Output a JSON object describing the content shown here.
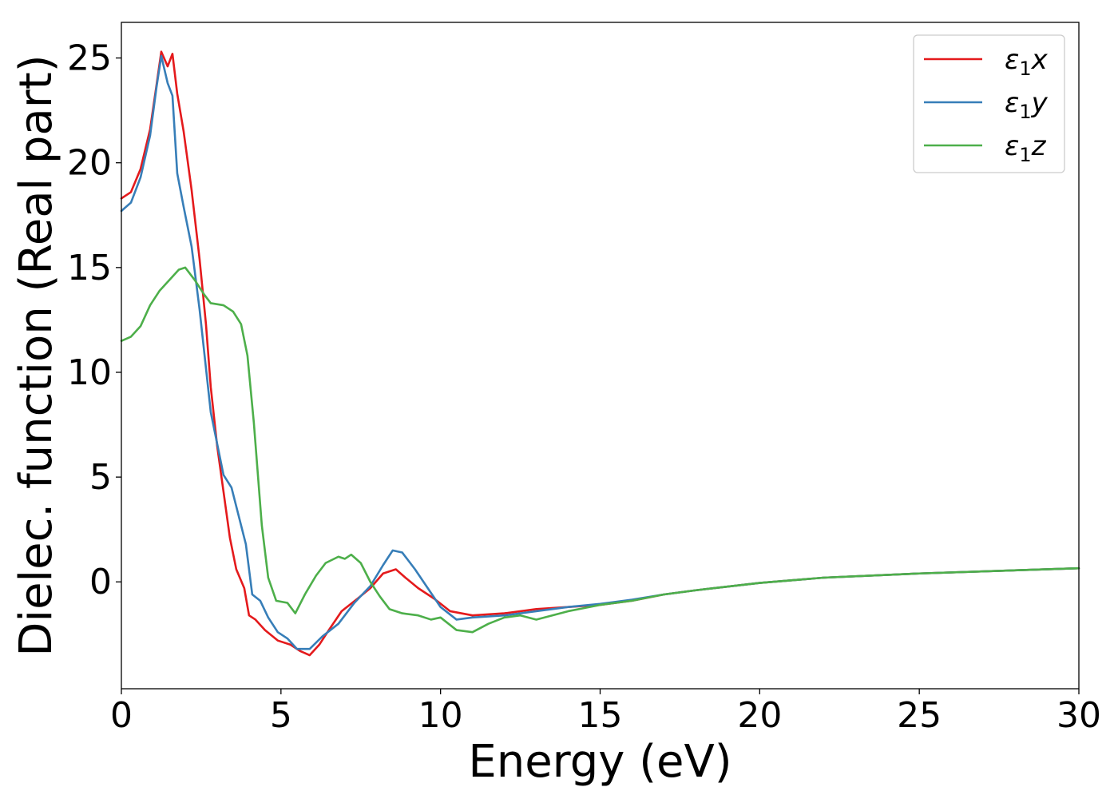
{
  "chart_data": {
    "type": "line",
    "xlabel": "Energy (eV)",
    "ylabel": "Dielec. function (Real part)",
    "xlim": [
      0,
      30
    ],
    "ylim": [
      -5.1,
      26.7
    ],
    "xticks": [
      0,
      5,
      10,
      15,
      20,
      25,
      30
    ],
    "yticks": [
      0,
      5,
      10,
      15,
      20,
      25
    ],
    "grid": false,
    "legend_position": "top-right",
    "series": [
      {
        "name": "ε₁x",
        "legend_main": "ε",
        "legend_sub": "1",
        "legend_var": "x",
        "color": "#e41a1c",
        "points": [
          [
            0,
            18.3
          ],
          [
            0.3,
            18.6
          ],
          [
            0.6,
            19.7
          ],
          [
            0.9,
            21.6
          ],
          [
            1.1,
            23.7
          ],
          [
            1.25,
            25.3
          ],
          [
            1.45,
            24.6
          ],
          [
            1.6,
            25.2
          ],
          [
            1.75,
            23.3
          ],
          [
            1.95,
            21.5
          ],
          [
            2.2,
            18.7
          ],
          [
            2.45,
            15.4
          ],
          [
            2.65,
            12.3
          ],
          [
            2.8,
            9.3
          ],
          [
            3.0,
            6.5
          ],
          [
            3.2,
            4.3
          ],
          [
            3.4,
            2.1
          ],
          [
            3.6,
            0.6
          ],
          [
            3.85,
            -0.3
          ],
          [
            4.0,
            -1.6
          ],
          [
            4.2,
            -1.8
          ],
          [
            4.5,
            -2.3
          ],
          [
            4.9,
            -2.8
          ],
          [
            5.3,
            -3.0
          ],
          [
            5.6,
            -3.3
          ],
          [
            5.9,
            -3.5
          ],
          [
            6.2,
            -3.0
          ],
          [
            6.5,
            -2.3
          ],
          [
            6.9,
            -1.4
          ],
          [
            7.4,
            -0.8
          ],
          [
            7.8,
            -0.3
          ],
          [
            8.2,
            0.4
          ],
          [
            8.6,
            0.6
          ],
          [
            8.9,
            0.2
          ],
          [
            9.3,
            -0.3
          ],
          [
            9.8,
            -0.8
          ],
          [
            10.3,
            -1.4
          ],
          [
            11.0,
            -1.6
          ],
          [
            12.0,
            -1.5
          ],
          [
            13.0,
            -1.3
          ],
          [
            14.0,
            -1.2
          ],
          [
            15.0,
            -1.1
          ],
          [
            16.0,
            -0.9
          ],
          [
            17.0,
            -0.6
          ],
          [
            18.0,
            -0.4
          ],
          [
            20.0,
            -0.05
          ],
          [
            22.0,
            0.2
          ],
          [
            25.0,
            0.4
          ],
          [
            30.0,
            0.65
          ]
        ]
      },
      {
        "name": "ε₁y",
        "legend_main": "ε",
        "legend_sub": "1",
        "legend_var": "y",
        "color": "#377eb8",
        "points": [
          [
            0,
            17.7
          ],
          [
            0.3,
            18.1
          ],
          [
            0.6,
            19.3
          ],
          [
            0.9,
            21.3
          ],
          [
            1.1,
            23.6
          ],
          [
            1.25,
            25.1
          ],
          [
            1.45,
            23.8
          ],
          [
            1.6,
            23.2
          ],
          [
            1.75,
            19.5
          ],
          [
            1.95,
            17.9
          ],
          [
            2.2,
            16.0
          ],
          [
            2.45,
            13.0
          ],
          [
            2.65,
            10.2
          ],
          [
            2.8,
            8.1
          ],
          [
            3.0,
            6.6
          ],
          [
            3.2,
            5.1
          ],
          [
            3.45,
            4.5
          ],
          [
            3.7,
            3.0
          ],
          [
            3.9,
            1.8
          ],
          [
            4.1,
            -0.6
          ],
          [
            4.35,
            -0.9
          ],
          [
            4.6,
            -1.7
          ],
          [
            4.9,
            -2.4
          ],
          [
            5.2,
            -2.7
          ],
          [
            5.5,
            -3.2
          ],
          [
            5.9,
            -3.2
          ],
          [
            6.3,
            -2.6
          ],
          [
            6.8,
            -2.0
          ],
          [
            7.3,
            -1.0
          ],
          [
            7.8,
            -0.2
          ],
          [
            8.2,
            0.8
          ],
          [
            8.5,
            1.5
          ],
          [
            8.8,
            1.4
          ],
          [
            9.2,
            0.6
          ],
          [
            9.6,
            -0.3
          ],
          [
            10.0,
            -1.2
          ],
          [
            10.5,
            -1.8
          ],
          [
            11.0,
            -1.7
          ],
          [
            12.0,
            -1.6
          ],
          [
            13.0,
            -1.4
          ],
          [
            14.0,
            -1.2
          ],
          [
            15.0,
            -1.05
          ],
          [
            16.0,
            -0.85
          ],
          [
            17.0,
            -0.6
          ],
          [
            18.0,
            -0.4
          ],
          [
            20.0,
            -0.05
          ],
          [
            22.0,
            0.2
          ],
          [
            25.0,
            0.4
          ],
          [
            30.0,
            0.65
          ]
        ]
      },
      {
        "name": "ε₁z",
        "legend_main": "ε",
        "legend_sub": "1",
        "legend_var": "z",
        "color": "#4daf4a",
        "points": [
          [
            0,
            11.5
          ],
          [
            0.3,
            11.7
          ],
          [
            0.6,
            12.2
          ],
          [
            0.9,
            13.2
          ],
          [
            1.2,
            13.9
          ],
          [
            1.5,
            14.4
          ],
          [
            1.8,
            14.9
          ],
          [
            2.0,
            15.0
          ],
          [
            2.3,
            14.4
          ],
          [
            2.6,
            13.7
          ],
          [
            2.8,
            13.3
          ],
          [
            3.2,
            13.2
          ],
          [
            3.5,
            12.9
          ],
          [
            3.75,
            12.3
          ],
          [
            3.95,
            10.8
          ],
          [
            4.15,
            7.6
          ],
          [
            4.4,
            2.7
          ],
          [
            4.6,
            0.2
          ],
          [
            4.85,
            -0.9
          ],
          [
            5.2,
            -1.0
          ],
          [
            5.45,
            -1.5
          ],
          [
            5.75,
            -0.6
          ],
          [
            6.1,
            0.3
          ],
          [
            6.4,
            0.9
          ],
          [
            6.8,
            1.2
          ],
          [
            7.0,
            1.1
          ],
          [
            7.2,
            1.3
          ],
          [
            7.5,
            0.9
          ],
          [
            7.8,
            0.0
          ],
          [
            8.1,
            -0.7
          ],
          [
            8.4,
            -1.3
          ],
          [
            8.8,
            -1.5
          ],
          [
            9.3,
            -1.6
          ],
          [
            9.7,
            -1.8
          ],
          [
            10.0,
            -1.7
          ],
          [
            10.5,
            -2.3
          ],
          [
            11.0,
            -2.4
          ],
          [
            11.5,
            -2.0
          ],
          [
            12.0,
            -1.7
          ],
          [
            12.5,
            -1.6
          ],
          [
            13.0,
            -1.8
          ],
          [
            13.5,
            -1.6
          ],
          [
            14.0,
            -1.4
          ],
          [
            15.0,
            -1.1
          ],
          [
            16.0,
            -0.9
          ],
          [
            17.0,
            -0.6
          ],
          [
            18.0,
            -0.4
          ],
          [
            20.0,
            -0.05
          ],
          [
            22.0,
            0.2
          ],
          [
            25.0,
            0.4
          ],
          [
            30.0,
            0.65
          ]
        ]
      }
    ]
  }
}
